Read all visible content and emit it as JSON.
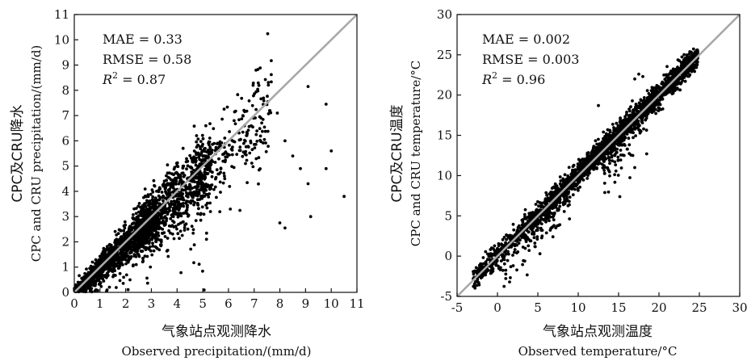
{
  "chart_data": [
    {
      "type": "scatter",
      "xlabel_cn": "气象站点观测降水",
      "xlabel_en": "Observed precipitation/(mm/d)",
      "ylabel_cn": "CPC及CRU降水",
      "ylabel_en": "CPC and CRU precipitation/(mm/d)",
      "xlim": [
        0,
        11
      ],
      "ylim": [
        0,
        11
      ],
      "xticks": [
        "0",
        "1",
        "2",
        "3",
        "4",
        "5",
        "6",
        "7",
        "8",
        "9",
        "10",
        "11"
      ],
      "yticks": [
        "0",
        "1",
        "2",
        "3",
        "4",
        "5",
        "6",
        "7",
        "8",
        "9",
        "10",
        "11"
      ],
      "stats": {
        "mae": "MAE = 0.33",
        "rmse": "RMSE = 0.58",
        "r2_prefix": "R",
        "r2_sup": "2",
        "r2_value": " = 0.87"
      },
      "reference_line": {
        "slope": 1,
        "intercept": 0,
        "color": "#a8a8a8"
      },
      "point_color": "#000000",
      "outliers": [
        {
          "x": 9.1,
          "y": 8.15
        },
        {
          "x": 9.8,
          "y": 7.45
        },
        {
          "x": 10.0,
          "y": 5.6
        },
        {
          "x": 10.5,
          "y": 3.8
        },
        {
          "x": 9.8,
          "y": 4.9
        },
        {
          "x": 9.2,
          "y": 3.0
        },
        {
          "x": 8.2,
          "y": 2.55
        },
        {
          "x": 8.0,
          "y": 2.75
        },
        {
          "x": 9.1,
          "y": 4.3
        },
        {
          "x": 8.8,
          "y": 4.9
        },
        {
          "x": 8.5,
          "y": 5.4
        },
        {
          "x": 7.9,
          "y": 7.1
        },
        {
          "x": 8.2,
          "y": 6.0
        }
      ]
    },
    {
      "type": "scatter",
      "xlabel_cn": "气象站点观测温度",
      "xlabel_en": "Observed temperature/°C",
      "ylabel_cn": "CPC及CRU温度",
      "ylabel_en": "CPC and CRU temperature/°C",
      "xlim": [
        -5,
        30
      ],
      "ylim": [
        -5,
        30
      ],
      "xticks": [
        "-5",
        "0",
        "5",
        "10",
        "15",
        "20",
        "25",
        "30"
      ],
      "yticks": [
        "-5",
        "0",
        "5",
        "10",
        "15",
        "20",
        "25",
        "30"
      ],
      "stats": {
        "mae": "MAE = 0.002",
        "rmse": "RMSE = 0.003",
        "r2_prefix": "R",
        "r2_sup": "2",
        "r2_value": " = 0.96"
      },
      "reference_line": {
        "slope": 1,
        "intercept": 0,
        "color": "#a8a8a8"
      },
      "point_color": "#000000",
      "outliers": [
        {
          "x": 17.0,
          "y": 22.0
        },
        {
          "x": 17.5,
          "y": 22.6
        },
        {
          "x": 18.0,
          "y": 22.3
        },
        {
          "x": 12.5,
          "y": 18.7
        },
        {
          "x": 7.5,
          "y": 8.0
        },
        {
          "x": 5.0,
          "y": 3.5
        },
        {
          "x": 17.0,
          "y": 11.0
        },
        {
          "x": -3.0,
          "y": -2.8
        },
        {
          "x": 1.5,
          "y": -3.2
        },
        {
          "x": 0.5,
          "y": 1.5
        }
      ]
    }
  ]
}
